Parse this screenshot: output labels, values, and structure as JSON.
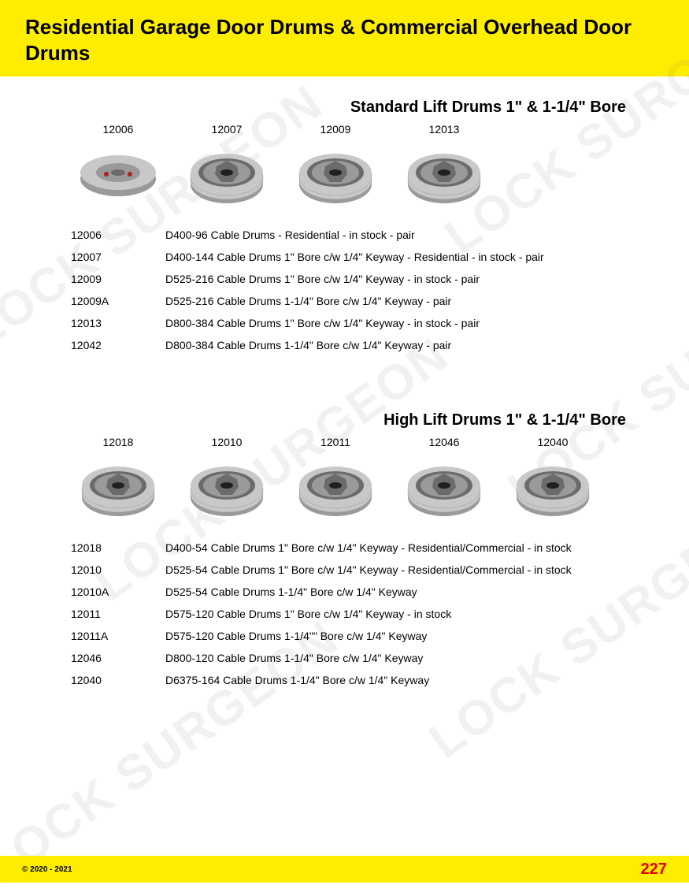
{
  "header": {
    "title": "Residential Garage Door Drums & Commercial Overhead Door Drums"
  },
  "colors": {
    "brand_yellow": "#ffed00",
    "page_red": "#e3000f",
    "text": "#000000",
    "watermark": "rgba(100,100,100,0.09)",
    "drum_light": "#c8c8c8",
    "drum_mid": "#9a9a9a",
    "drum_dark": "#6b6b6b"
  },
  "watermark_text": "LOCK SURGEON",
  "section1": {
    "title": "Standard Lift Drums 1\" & 1-1/4\" Bore",
    "products": [
      {
        "code": "12006"
      },
      {
        "code": "12007"
      },
      {
        "code": "12009"
      },
      {
        "code": "12013"
      }
    ],
    "specs": [
      {
        "code": "12006",
        "desc": "D400-96 Cable Drums - Residential - in stock - pair"
      },
      {
        "code": "12007",
        "desc": "D400-144 Cable Drums 1\" Bore c/w 1/4\" Keyway - Residential - in stock - pair"
      },
      {
        "code": "12009",
        "desc": "D525-216 Cable Drums 1\" Bore c/w 1/4\" Keyway - in stock - pair"
      },
      {
        "code": "12009A",
        "desc": "D525-216 Cable Drums 1-1/4\" Bore c/w 1/4\" Keyway - pair"
      },
      {
        "code": "12013",
        "desc": "D800-384 Cable Drums 1\" Bore c/w 1/4\" Keyway - in stock - pair"
      },
      {
        "code": "12042",
        "desc": "D800-384 Cable Drums 1-1/4\" Bore c/w 1/4\" Keyway  - pair"
      }
    ]
  },
  "section2": {
    "title": "High Lift Drums 1\" & 1-1/4\" Bore",
    "products": [
      {
        "code": "12018"
      },
      {
        "code": "12010"
      },
      {
        "code": "12011"
      },
      {
        "code": "12046"
      },
      {
        "code": "12040"
      }
    ],
    "specs": [
      {
        "code": "12018",
        "desc": "D400-54 Cable Drums 1\" Bore c/w 1/4\" Keyway - Residential/Commercial - in stock"
      },
      {
        "code": "12010",
        "desc": "D525-54 Cable Drums 1\" Bore c/w 1/4\" Keyway - Residential/Commercial - in stock"
      },
      {
        "code": "12010A",
        "desc": "D525-54 Cable Drums 1-1/4\" Bore c/w 1/4\" Keyway"
      },
      {
        "code": "12011",
        "desc": "D575-120 Cable Drums 1\" Bore c/w 1/4\" Keyway - in stock"
      },
      {
        "code": "12011A",
        "desc": "D575-120 Cable Drums 1-1/4\"\" Bore c/w 1/4\" Keyway"
      },
      {
        "code": "12046",
        "desc": "D800-120 Cable Drums 1-1/4\" Bore c/w 1/4\" Keyway"
      },
      {
        "code": "12040",
        "desc": "D6375-164 Cable Drums 1-1/4\" Bore c/w 1/4\" Keyway"
      }
    ]
  },
  "footer": {
    "copyright": "© 2020 - 2021",
    "page": "227"
  }
}
